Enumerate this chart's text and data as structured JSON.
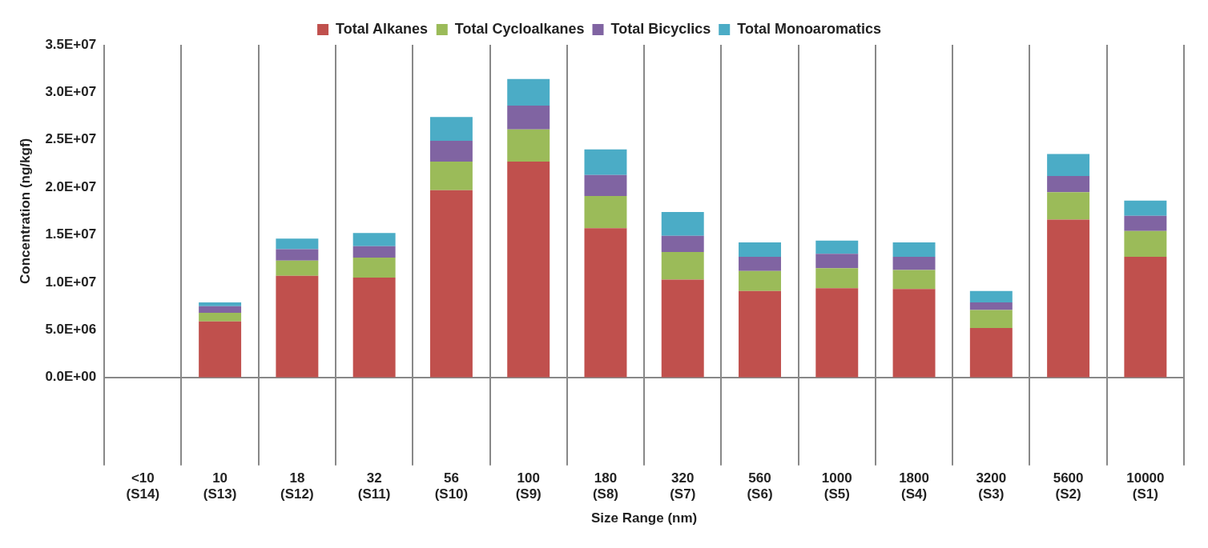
{
  "chart_data": {
    "type": "bar",
    "stacked": true,
    "xlabel": "Size Range (nm)",
    "ylabel": "Concentration (ng/kgf)",
    "categories": [
      "<10\n(S14)",
      "10\n(S13)",
      "18\n(S12)",
      "32\n(S11)",
      "56\n(S10)",
      "100\n(S9)",
      "180\n(S8)",
      "320\n(S7)",
      "560\n(S6)",
      "1000\n(S5)",
      "1800\n(S4)",
      "3200\n(S3)",
      "5600\n(S2)",
      "10000\n(S1)"
    ],
    "series": [
      {
        "name": "Total Alkanes",
        "color": "#c0504d",
        "values": [
          null,
          5900000,
          10700000,
          10500000,
          19700000,
          22700000,
          15700000,
          10300000,
          9100000,
          9400000,
          9300000,
          5200000,
          16600000,
          12700000
        ]
      },
      {
        "name": "Total Cycloalkanes",
        "color": "#9bbb59",
        "values": [
          null,
          900000,
          1600000,
          2100000,
          3000000,
          3400000,
          3400000,
          2900000,
          2100000,
          2100000,
          2000000,
          1900000,
          2900000,
          2700000
        ]
      },
      {
        "name": "Total Bicyclics",
        "color": "#8064a2",
        "values": [
          null,
          700000,
          1200000,
          1200000,
          2200000,
          2500000,
          2200000,
          1700000,
          1500000,
          1500000,
          1400000,
          800000,
          1700000,
          1600000
        ]
      },
      {
        "name": "Total Monoaromatics",
        "color": "#4bacc6",
        "values": [
          null,
          400000,
          1100000,
          1400000,
          2500000,
          2800000,
          2700000,
          2500000,
          1500000,
          1400000,
          1500000,
          1200000,
          2300000,
          1600000
        ]
      }
    ],
    "ylim": [
      0,
      35000000
    ],
    "yticks": [
      {
        "value": 0,
        "label": "0.0E+00"
      },
      {
        "value": 5000000,
        "label": "5.0E+06"
      },
      {
        "value": 10000000,
        "label": "1.0E+07"
      },
      {
        "value": 15000000,
        "label": "1.5E+07"
      },
      {
        "value": 20000000,
        "label": "2.0E+07"
      },
      {
        "value": 25000000,
        "label": "2.5E+07"
      },
      {
        "value": 30000000,
        "label": "3.0E+07"
      },
      {
        "value": 35000000,
        "label": "3.5E+07"
      }
    ],
    "grid": "x",
    "legend": "top"
  }
}
